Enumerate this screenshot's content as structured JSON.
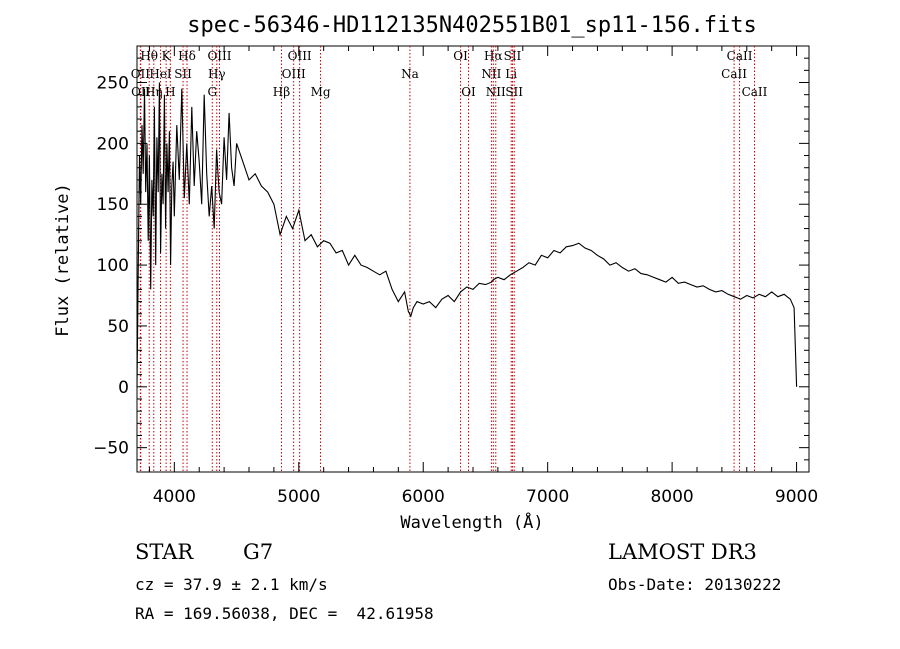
{
  "chart_data": {
    "type": "line",
    "title": "spec-56346-HD112135N402551B01_sp11-156.fits",
    "xlabel": "Wavelength (Å)",
    "ylabel": "Flux (relative)",
    "xlim": [
      3700,
      9100
    ],
    "ylim": [
      -70,
      280
    ],
    "xticks": [
      4000,
      5000,
      6000,
      7000,
      8000,
      9000
    ],
    "yticks": [
      -50,
      0,
      50,
      100,
      150,
      200,
      250
    ],
    "xtick_labels": [
      "4000",
      "5000",
      "6000",
      "7000",
      "8000",
      "9000"
    ],
    "ytick_labels": [
      "−50",
      "0",
      "50",
      "100",
      "150",
      "200",
      "250"
    ],
    "series": [
      {
        "x": [
          3700,
          3710,
          3720,
          3730,
          3740,
          3750,
          3760,
          3770,
          3780,
          3790,
          3800,
          3810,
          3820,
          3830,
          3840,
          3850,
          3860,
          3870,
          3880,
          3890,
          3900,
          3910,
          3920,
          3930,
          3940,
          3950,
          3960,
          3970,
          3980,
          3990,
          4000,
          4020,
          4040,
          4060,
          4080,
          4100,
          4120,
          4140,
          4160,
          4180,
          4200,
          4220,
          4240,
          4260,
          4280,
          4300,
          4320,
          4340,
          4360,
          4380,
          4400,
          4420,
          4440,
          4460,
          4480,
          4500,
          4550,
          4600,
          4650,
          4700,
          4750,
          4800,
          4850,
          4900,
          4950,
          5000,
          5050,
          5100,
          5150,
          5200,
          5250,
          5300,
          5350,
          5400,
          5450,
          5500,
          5550,
          5600,
          5650,
          5700,
          5750,
          5800,
          5850,
          5880,
          5900,
          5920,
          5950,
          6000,
          6050,
          6100,
          6150,
          6200,
          6250,
          6300,
          6350,
          6400,
          6450,
          6500,
          6550,
          6563,
          6600,
          6650,
          6700,
          6750,
          6800,
          6850,
          6900,
          6950,
          7000,
          7050,
          7100,
          7150,
          7200,
          7250,
          7300,
          7350,
          7400,
          7450,
          7500,
          7550,
          7600,
          7650,
          7700,
          7750,
          7800,
          7850,
          7900,
          7950,
          8000,
          8050,
          8100,
          8150,
          8200,
          8250,
          8300,
          8350,
          8400,
          8450,
          8500,
          8550,
          8600,
          8650,
          8700,
          8750,
          8800,
          8850,
          8900,
          8950,
          8980,
          9000
        ],
        "y": [
          0,
          95,
          190,
          150,
          215,
          175,
          245,
          160,
          200,
          120,
          190,
          80,
          170,
          140,
          230,
          100,
          205,
          160,
          250,
          110,
          175,
          150,
          240,
          130,
          200,
          160,
          210,
          100,
          165,
          185,
          140,
          215,
          170,
          245,
          155,
          200,
          150,
          230,
          165,
          210,
          185,
          150,
          240,
          175,
          140,
          165,
          130,
          195,
          160,
          150,
          205,
          170,
          225,
          180,
          165,
          200,
          185,
          170,
          175,
          165,
          160,
          150,
          125,
          140,
          130,
          145,
          120,
          125,
          115,
          120,
          118,
          110,
          112,
          100,
          108,
          100,
          98,
          95,
          92,
          95,
          80,
          70,
          78,
          62,
          58,
          65,
          70,
          68,
          70,
          65,
          72,
          75,
          70,
          78,
          82,
          80,
          85,
          84,
          86,
          88,
          90,
          88,
          92,
          95,
          98,
          102,
          100,
          108,
          106,
          112,
          110,
          115,
          116,
          118,
          114,
          112,
          108,
          105,
          100,
          102,
          98,
          95,
          97,
          93,
          92,
          90,
          88,
          86,
          90,
          85,
          86,
          84,
          82,
          83,
          80,
          78,
          79,
          76,
          74,
          72,
          75,
          73,
          76,
          74,
          78,
          74,
          76,
          72,
          65,
          0
        ]
      }
    ],
    "spectral_lines": [
      {
        "name": "Hθ",
        "x": 3798,
        "row": 1
      },
      {
        "name": "OII",
        "x": 3727,
        "row": 2
      },
      {
        "name": "Hη",
        "x": 3835,
        "row": 3
      },
      {
        "name": "OII",
        "x": 3730,
        "row": 3
      },
      {
        "name": "K",
        "x": 3934,
        "row": 1
      },
      {
        "name": "HeI",
        "x": 3889,
        "row": 2
      },
      {
        "name": "H",
        "x": 3968,
        "row": 3
      },
      {
        "name": "SII",
        "x": 4070,
        "row": 2
      },
      {
        "name": "Hδ",
        "x": 4102,
        "row": 1
      },
      {
        "name": "OIII",
        "x": 4363,
        "row": 1
      },
      {
        "name": "Hγ",
        "x": 4341,
        "row": 2
      },
      {
        "name": "G",
        "x": 4305,
        "row": 3
      },
      {
        "name": "Hβ",
        "x": 4861,
        "row": 3
      },
      {
        "name": "OIII",
        "x": 5007,
        "row": 1
      },
      {
        "name": "OIII",
        "x": 4959,
        "row": 2
      },
      {
        "name": "Mg",
        "x": 5175,
        "row": 3
      },
      {
        "name": "Na",
        "x": 5893,
        "row": 2
      },
      {
        "name": "OI",
        "x": 6300,
        "row": 1
      },
      {
        "name": "OI",
        "x": 6364,
        "row": 3
      },
      {
        "name": "Hα",
        "x": 6563,
        "row": 1
      },
      {
        "name": "NII",
        "x": 6548,
        "row": 2
      },
      {
        "name": "NII",
        "x": 6583,
        "row": 3
      },
      {
        "name": "SII",
        "x": 6717,
        "row": 1
      },
      {
        "name": "Li",
        "x": 6707,
        "row": 2
      },
      {
        "name": "SII",
        "x": 6731,
        "row": 3
      },
      {
        "name": "CaII",
        "x": 8542,
        "row": 1
      },
      {
        "name": "CaII",
        "x": 8498,
        "row": 2
      },
      {
        "name": "CaII",
        "x": 8662,
        "row": 3
      }
    ],
    "line_color": "#cc0000",
    "grid": false,
    "legend": "none"
  },
  "info": {
    "object_class": "STAR",
    "subclass": "G7",
    "cz": "cz = 37.9 ± 2.1 km/s",
    "coords": "RA = 169.56038, DEC =  42.61958",
    "survey": "LAMOST DR3",
    "obs_date": "Obs-Date: 20130222"
  }
}
